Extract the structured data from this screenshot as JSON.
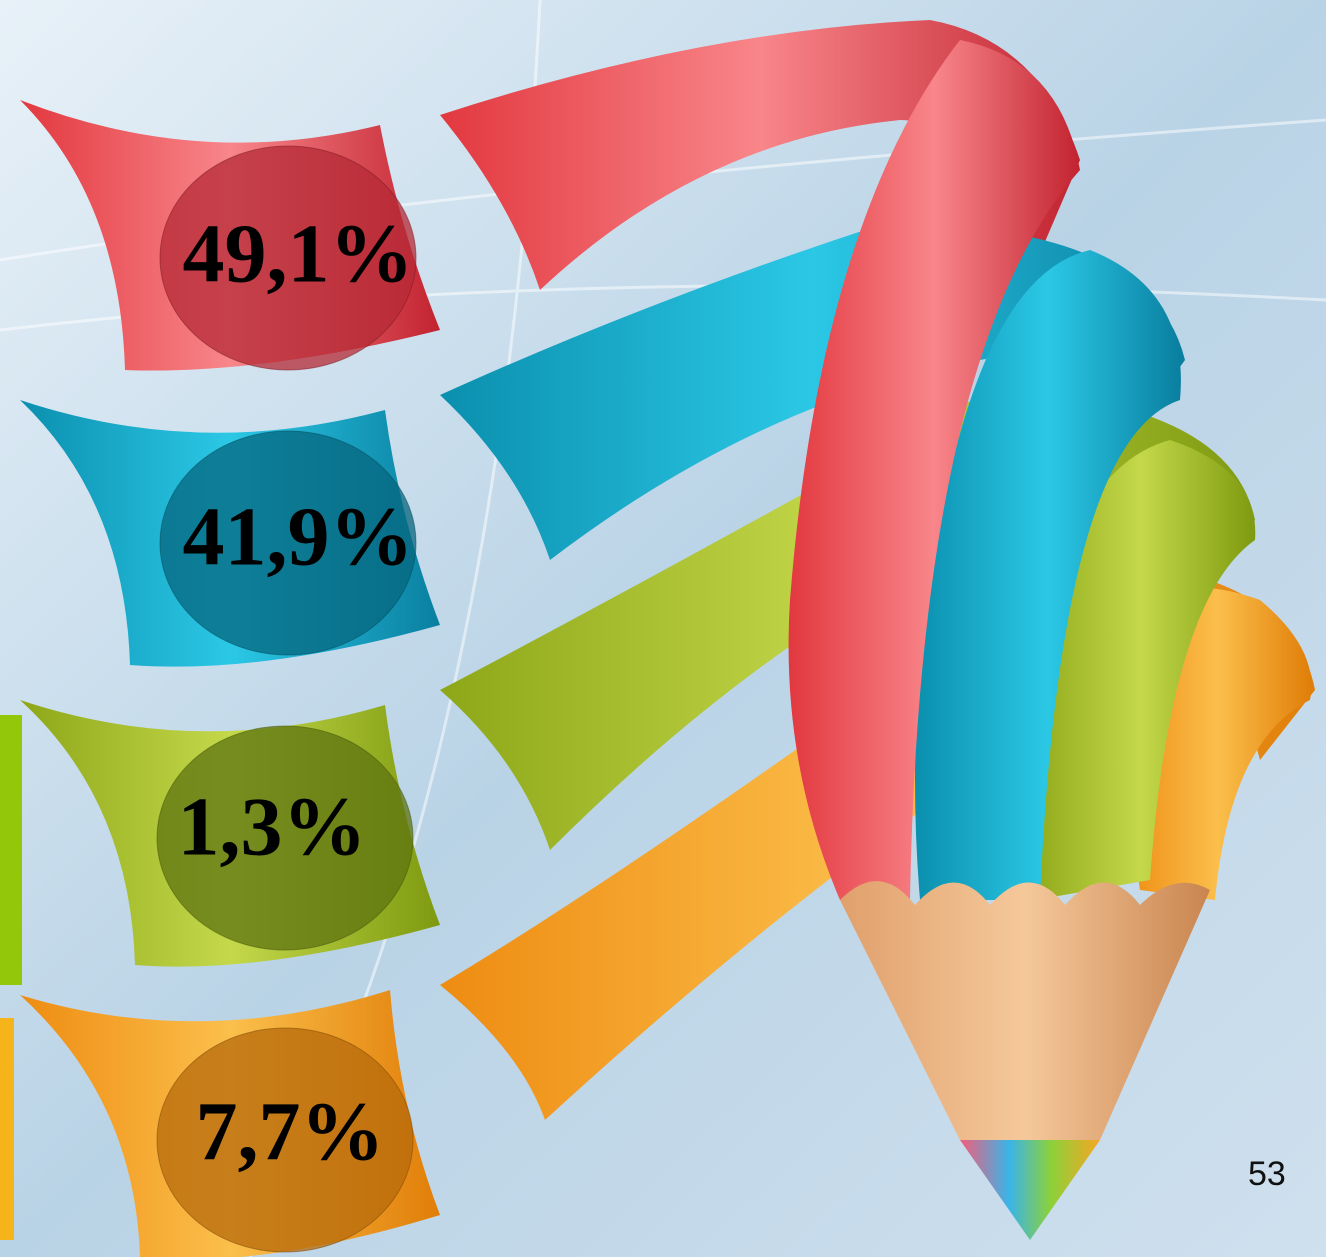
{
  "items": [
    {
      "label": "49,1%"
    },
    {
      "label": "41,9%"
    },
    {
      "label": "1,3%"
    },
    {
      "label": "7,7%"
    }
  ],
  "page_number": "53"
}
